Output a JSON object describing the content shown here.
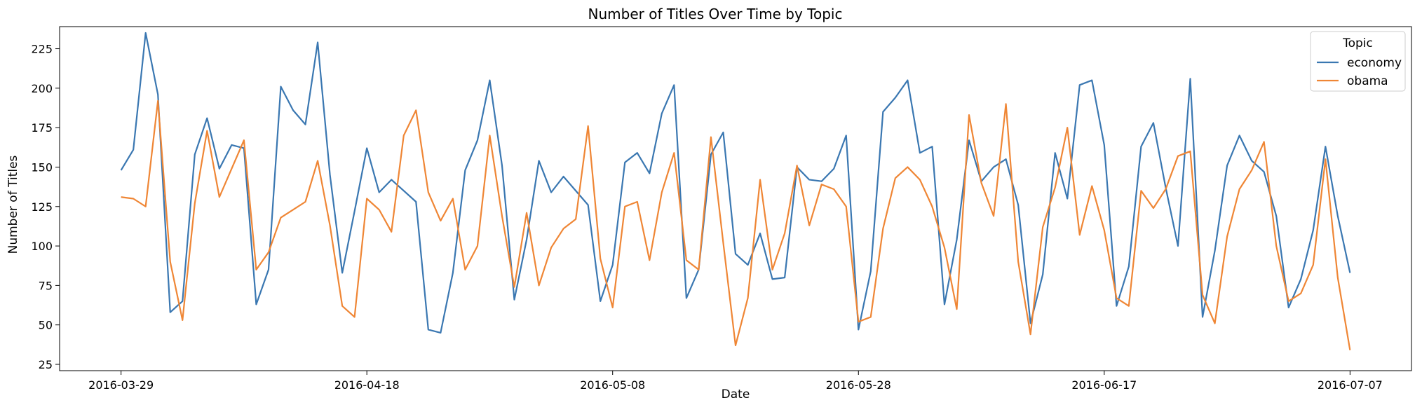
{
  "chart_data": {
    "type": "line",
    "title": "Number of Titles Over Time by Topic",
    "xlabel": "Date",
    "ylabel": "Number of Titles",
    "x_start": "2016-03-29",
    "x_end": "2016-07-07",
    "xticks": [
      "2016-03-29",
      "2016-04-18",
      "2016-05-08",
      "2016-05-28",
      "2016-06-17",
      "2016-07-07"
    ],
    "yticks": [
      25,
      50,
      75,
      100,
      125,
      150,
      175,
      200,
      225
    ],
    "ylim": [
      21,
      239
    ],
    "legend": {
      "title": "Topic",
      "position": "top-right"
    },
    "series": [
      {
        "name": "economy",
        "color": "#3a77b1",
        "values": [
          148,
          161,
          235,
          196,
          58,
          65,
          158,
          181,
          149,
          164,
          162,
          63,
          85,
          201,
          186,
          177,
          229,
          145,
          83,
          122,
          162,
          134,
          142,
          135,
          128,
          47,
          45,
          83,
          148,
          167,
          205,
          151,
          66,
          104,
          154,
          134,
          144,
          135,
          126,
          65,
          88,
          153,
          159,
          146,
          184,
          202,
          67,
          85,
          158,
          172,
          95,
          88,
          108,
          79,
          80,
          150,
          142,
          141,
          149,
          170,
          47,
          84,
          185,
          194,
          205,
          159,
          163,
          63,
          104,
          167,
          141,
          150,
          155,
          126,
          51,
          82,
          159,
          130,
          202,
          205,
          164,
          62,
          87,
          163,
          178,
          137,
          100,
          206,
          55,
          97,
          151,
          170,
          154,
          147,
          119,
          61,
          79,
          110,
          163,
          119,
          83
        ]
      },
      {
        "name": "obama",
        "color": "#ef8635",
        "values": [
          131,
          130,
          125,
          192,
          90,
          53,
          127,
          173,
          131,
          149,
          167,
          85,
          96,
          118,
          123,
          128,
          154,
          113,
          62,
          55,
          130,
          123,
          109,
          170,
          186,
          134,
          116,
          130,
          85,
          100,
          170,
          119,
          74,
          121,
          75,
          99,
          111,
          117,
          176,
          92,
          61,
          125,
          128,
          91,
          134,
          159,
          91,
          85,
          169,
          102,
          37,
          67,
          142,
          85,
          108,
          151,
          113,
          139,
          136,
          125,
          52,
          55,
          111,
          143,
          150,
          142,
          125,
          99,
          60,
          183,
          140,
          119,
          190,
          90,
          44,
          112,
          137,
          175,
          107,
          138,
          110,
          67,
          62,
          135,
          124,
          136,
          157,
          160,
          69,
          51,
          106,
          136,
          148,
          166,
          100,
          65,
          70,
          88,
          155,
          80,
          34
        ]
      }
    ]
  }
}
